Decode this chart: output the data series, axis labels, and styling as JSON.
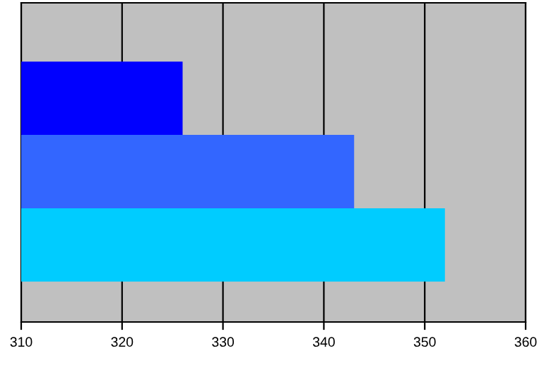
{
  "chart_data": {
    "type": "bar",
    "orientation": "horizontal",
    "categories": [
      null,
      null,
      null
    ],
    "values": [
      326,
      343,
      352
    ],
    "colors": [
      "#0000ff",
      "#3366ff",
      "#00ccff"
    ],
    "xlim": [
      310,
      360
    ],
    "xticks": [
      310,
      320,
      330,
      340,
      350,
      360
    ],
    "grid": "x",
    "tick_labels": "x"
  }
}
